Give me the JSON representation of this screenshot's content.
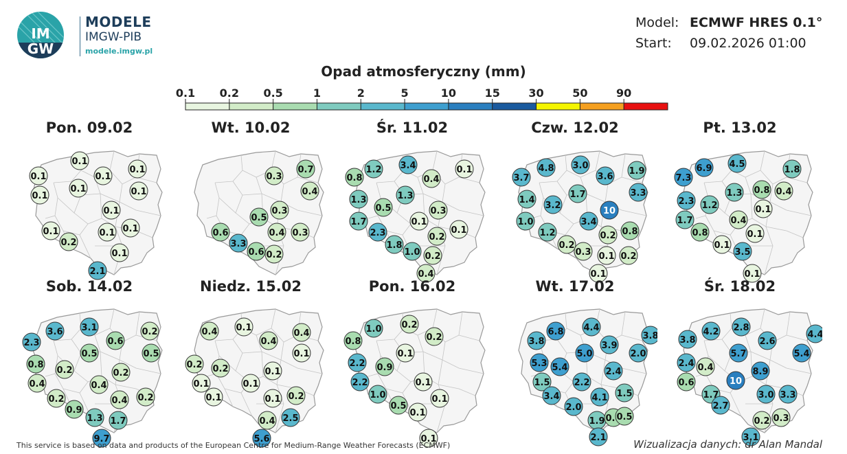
{
  "brand": {
    "logo_text": "IMGW",
    "title": "MODELE",
    "subtitle": "IMGW-PIB",
    "url": "modele.imgw.pl"
  },
  "model_info": {
    "model_label": "Model:",
    "model_value": "ECMWF HRES 0.1°",
    "start_label": "Start:",
    "start_value": "09.02.2026 01:00"
  },
  "legend": {
    "title": "Opad atmosferyczny (mm)",
    "ticks": [
      "0.1",
      "0.2",
      "0.5",
      "1",
      "2",
      "5",
      "10",
      "15",
      "30",
      "50",
      "90"
    ],
    "colors": [
      "#e8f5e0",
      "#d2ecc8",
      "#a9dcb0",
      "#7fcbbf",
      "#5ab8cd",
      "#3e9fcf",
      "#2a7fbf",
      "#1a5a9e",
      "#f5f500",
      "#f5a020",
      "#e81010"
    ]
  },
  "maps": [
    {
      "title": "Pon. 09.02",
      "values": [
        "0.1",
        "0.1",
        "0.1",
        "0.1",
        "0.1",
        "0.1",
        "0.1",
        "0.1",
        "0.1",
        "0.1",
        "0.1",
        "0.2",
        "0.1",
        "2.1"
      ]
    },
    {
      "title": "Wt. 10.02",
      "values": [
        "0.3",
        "0.7",
        "0.4",
        "0.5",
        "0.3",
        "0.4",
        "0.3",
        "0.6",
        "3.3",
        "0.6",
        "0.2"
      ]
    },
    {
      "title": "Śr. 11.02",
      "values": [
        "1.2",
        "3.4",
        "0.4",
        "0.1",
        "0.8",
        "1.3",
        "1.3",
        "0.5",
        "1.7",
        "0.1",
        "0.3",
        "2.3",
        "0.2",
        "0.1",
        "1.8",
        "1.0",
        "0.2",
        "0.4"
      ]
    },
    {
      "title": "Czw. 12.02",
      "values": [
        "4.8",
        "3.0",
        "1.9",
        "3.7",
        "3.6",
        "3.3",
        "1.4",
        "1.7",
        "3.2",
        "10",
        "1.0",
        "3.4",
        "0.8",
        "1.2",
        "0.2",
        "0.2",
        "0.3",
        "0.1",
        "0.2",
        "0.1"
      ]
    },
    {
      "title": "Pt. 13.02",
      "values": [
        "6.9",
        "4.5",
        "1.8",
        "7.3",
        "0.8",
        "2.3",
        "1.3",
        "0.4",
        "1.2",
        "0.1",
        "1.7",
        "0.4",
        "0.8",
        "0.1",
        "0.1",
        "3.5",
        "0.1"
      ]
    },
    {
      "title": "Sob. 14.02",
      "values": [
        "3.6",
        "3.1",
        "0.2",
        "2.3",
        "0.6",
        "0.5",
        "0.8",
        "0.5",
        "0.2",
        "0.2",
        "0.4",
        "0.4",
        "0.2",
        "0.4",
        "0.2",
        "0.9",
        "1.3",
        "1.7",
        "9.7"
      ]
    },
    {
      "title": "Niedz. 15.02",
      "values": [
        "0.4",
        "0.1",
        "0.4",
        "0.4",
        "0.1",
        "0.2",
        "0.2",
        "0.1",
        "0.1",
        "0.1",
        "0.1",
        "0.1",
        "0.2",
        "0.4",
        "2.5",
        "5.6"
      ]
    },
    {
      "title": "Pon. 16.02",
      "values": [
        "1.0",
        "0.2",
        "0.8",
        "0.2",
        "0.1",
        "2.2",
        "0.9",
        "2.2",
        "0.1",
        "1.0",
        "0.5",
        "0.1",
        "0.1",
        "0.1"
      ]
    },
    {
      "title": "Wt. 17.02",
      "values": [
        "6.8",
        "4.4",
        "3.8",
        "3.8",
        "3.9",
        "5.0",
        "2.0",
        "5.3",
        "5.4",
        "2.4",
        "1.5",
        "2.2",
        "3.4",
        "2.0",
        "4.1",
        "1.5",
        "1.9",
        "0.8",
        "0.5",
        "2.1"
      ]
    },
    {
      "title": "Śr. 18.02",
      "values": [
        "4.2",
        "2.8",
        "4.4",
        "3.8",
        "2.6",
        "5.7",
        "5.4",
        "2.4",
        "0.4",
        "8.9",
        "10",
        "0.6",
        "1.7",
        "3.0",
        "3.3",
        "2.7",
        "0.2",
        "0.3",
        "3.1"
      ]
    }
  ],
  "footer": {
    "left": "This service is based on data and products of the European Centre for Medium-Range Weather Forecasts (ECMWF)",
    "right": "Wizualizacja danych: dr Alan Mandal"
  }
}
